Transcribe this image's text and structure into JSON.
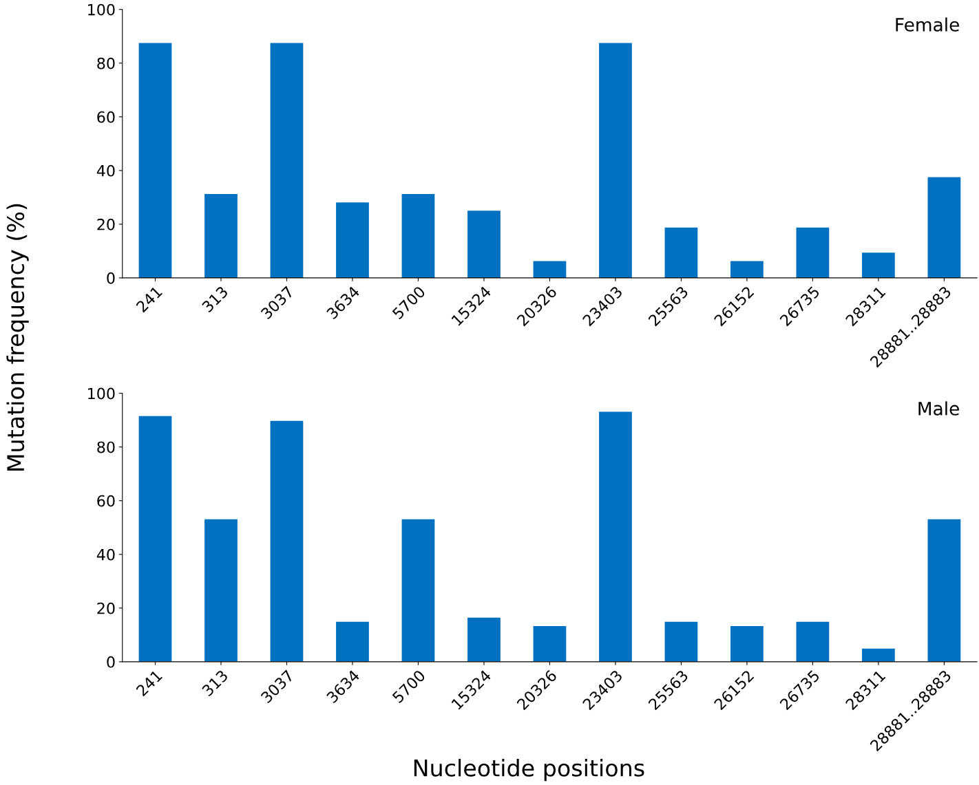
{
  "chart_data": [
    {
      "type": "bar",
      "title": "Female",
      "ylabel": "Mutation frequency (%)",
      "categories": [
        "241",
        "313",
        "3037",
        "3634",
        "5700",
        "15324",
        "20326",
        "23403",
        "25563",
        "26152",
        "26735",
        "28311",
        "28881..28883"
      ],
      "series": [
        {
          "color": "#0070c0",
          "values": [
            87.5,
            31.25,
            87.5,
            28.1,
            31.25,
            25,
            6.25,
            87.5,
            18.75,
            6.25,
            18.75,
            9.4,
            37.5
          ]
        }
      ],
      "ylim": [
        0,
        100
      ],
      "yticks": [
        0,
        20,
        40,
        60,
        80,
        100
      ]
    },
    {
      "type": "bar",
      "title": "Male",
      "xlabel": "Nucleotide positions",
      "categories": [
        "241",
        "313",
        "3037",
        "3634",
        "5700",
        "15324",
        "20326",
        "23403",
        "25563",
        "26152",
        "26735",
        "28311",
        "28881..28883"
      ],
      "series": [
        {
          "color": "#0070c0",
          "values": [
            91.5,
            53.1,
            89.7,
            14.9,
            53.1,
            16.4,
            13.3,
            93.1,
            14.9,
            13.3,
            14.9,
            4.9,
            53.1
          ]
        }
      ],
      "ylim": [
        0,
        100
      ],
      "yticks": [
        0,
        20,
        40,
        60,
        80,
        100
      ]
    }
  ]
}
